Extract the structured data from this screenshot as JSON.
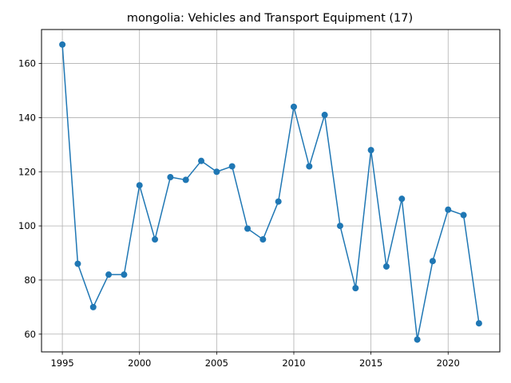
{
  "chart_data": {
    "type": "line",
    "title": "mongolia: Vehicles and Transport Equipment (17)",
    "xlabel": "",
    "ylabel": "",
    "x": [
      1995,
      1996,
      1997,
      1998,
      1999,
      2000,
      2001,
      2002,
      2003,
      2004,
      2005,
      2006,
      2007,
      2008,
      2009,
      2010,
      2011,
      2012,
      2013,
      2014,
      2015,
      2016,
      2017,
      2018,
      2019,
      2020,
      2021,
      2022
    ],
    "series": [
      {
        "values": [
          167,
          86,
          70,
          82,
          82,
          115,
          95,
          118,
          117,
          124,
          120,
          122,
          99,
          95,
          109,
          144,
          122,
          141,
          100,
          77,
          128,
          85,
          110,
          58,
          87,
          106,
          104,
          64
        ],
        "color": "#1f77b4"
      }
    ],
    "xlim": [
      1993.65,
      1995.0
    ],
    "xticks": [
      "1995",
      "2000",
      "2005",
      "2010",
      "2015",
      "2020"
    ],
    "yticks": [
      "60",
      "80",
      "100",
      "120",
      "140",
      "160"
    ],
    "grid": true,
    "legend": "none"
  }
}
